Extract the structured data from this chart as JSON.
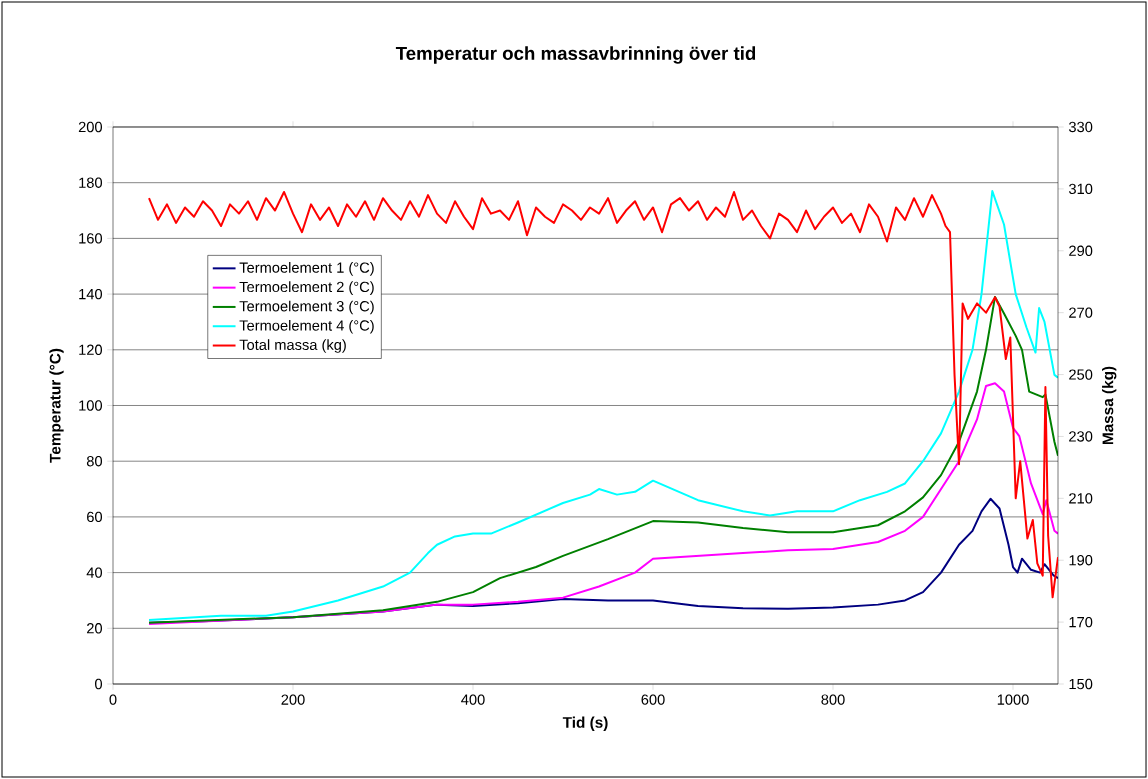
{
  "chart_data": {
    "type": "line",
    "title": "Temperatur och massavbrinning över tid",
    "xlabel": "Tid (s)",
    "ylabel": "Temperatur (°C)",
    "y2label": "Massa (kg)",
    "xlim": [
      0,
      1050
    ],
    "xticks": [
      0,
      200,
      400,
      600,
      800,
      1000
    ],
    "ylim": [
      0,
      200
    ],
    "yticks": [
      0,
      20,
      40,
      60,
      80,
      100,
      120,
      140,
      160,
      180,
      200
    ],
    "y2lim": [
      150,
      330
    ],
    "y2ticks": [
      150,
      170,
      190,
      210,
      230,
      250,
      270,
      290,
      310,
      330
    ],
    "grid": "y",
    "legend": "top left",
    "series": [
      {
        "name": "Termoelement 1 (°C)",
        "color": "#000080",
        "x": [
          40,
          100,
          200,
          300,
          360,
          400,
          450,
          500,
          550,
          600,
          650,
          700,
          750,
          800,
          850,
          880,
          900,
          920,
          940,
          955,
          965,
          975,
          985,
          995,
          1000,
          1005,
          1010,
          1020,
          1030,
          1035,
          1045,
          1050
        ],
        "values": [
          22,
          22.5,
          24,
          26,
          28.5,
          28,
          29,
          30.5,
          30,
          30,
          28,
          27.2,
          27,
          27.5,
          28.5,
          30,
          33,
          40,
          50,
          55,
          62,
          66.5,
          63,
          50,
          42,
          40,
          45,
          41,
          40,
          43,
          39,
          38
        ]
      },
      {
        "name": "Termoelement 2 (°C)",
        "color": "#ff00ff",
        "x": [
          40,
          200,
          300,
          360,
          400,
          450,
          500,
          540,
          580,
          600,
          700,
          750,
          800,
          850,
          880,
          900,
          920,
          940,
          960,
          970,
          980,
          990,
          1000,
          1007,
          1020,
          1033,
          1037,
          1046,
          1050
        ],
        "values": [
          21.5,
          24,
          26,
          28.5,
          28.5,
          29.5,
          31,
          35,
          40,
          45,
          47,
          48,
          48.5,
          51,
          55,
          60,
          70,
          80,
          95,
          107,
          108,
          105,
          92,
          89,
          72,
          61,
          66,
          55,
          54
        ]
      },
      {
        "name": "Termoelement 3 (°C)",
        "color": "#008000",
        "x": [
          40,
          200,
          300,
          360,
          400,
          430,
          470,
          500,
          550,
          600,
          650,
          700,
          750,
          800,
          850,
          880,
          900,
          920,
          940,
          960,
          970,
          980,
          990,
          1003,
          1010,
          1018,
          1033,
          1036,
          1046,
          1050
        ],
        "values": [
          22,
          24,
          26.5,
          29.5,
          33,
          38,
          42,
          46,
          52,
          58.5,
          58,
          56,
          54.5,
          54.5,
          57,
          62,
          67,
          75,
          87,
          105,
          120,
          139,
          133,
          125,
          120,
          105,
          103,
          104,
          87,
          82
        ]
      },
      {
        "name": "Termoelement 4 (°C)",
        "color": "#00ffff",
        "x": [
          40,
          120,
          170,
          200,
          250,
          300,
          330,
          350,
          360,
          380,
          400,
          420,
          450,
          500,
          530,
          540,
          560,
          580,
          600,
          650,
          700,
          730,
          760,
          800,
          830,
          860,
          880,
          900,
          920,
          940,
          955,
          965,
          977,
          990,
          1003,
          1015,
          1025,
          1029,
          1035,
          1046,
          1050
        ],
        "values": [
          23,
          24.5,
          24.5,
          26,
          30,
          35,
          40,
          47,
          50,
          53,
          54,
          54,
          58,
          65,
          68,
          70,
          68,
          69,
          73,
          66,
          62,
          60.5,
          62,
          62,
          66,
          69,
          72,
          80,
          90,
          105,
          120,
          140,
          177,
          165,
          140,
          128,
          119,
          135,
          130,
          111,
          110
        ]
      },
      {
        "name": "Total massa (kg)",
        "color": "#ff0000",
        "axis": "y2",
        "x": [
          40,
          50,
          60,
          70,
          80,
          90,
          100,
          110,
          120,
          130,
          140,
          150,
          160,
          170,
          180,
          190,
          200,
          210,
          220,
          230,
          240,
          250,
          260,
          270,
          280,
          290,
          300,
          310,
          320,
          330,
          340,
          350,
          360,
          370,
          380,
          390,
          400,
          410,
          420,
          430,
          440,
          450,
          460,
          470,
          480,
          490,
          500,
          510,
          520,
          530,
          540,
          550,
          560,
          570,
          580,
          590,
          600,
          610,
          620,
          630,
          640,
          650,
          660,
          670,
          680,
          690,
          700,
          710,
          720,
          730,
          740,
          750,
          760,
          770,
          780,
          790,
          800,
          810,
          820,
          830,
          840,
          850,
          860,
          870,
          880,
          890,
          900,
          910,
          920,
          925,
          930,
          935,
          940,
          944,
          950,
          960,
          970,
          980,
          985,
          992,
          997,
          1003,
          1008,
          1016,
          1022,
          1027,
          1033,
          1036,
          1039,
          1044,
          1050
        ],
        "values": [
          307,
          300,
          305,
          299,
          304,
          301,
          306,
          303,
          298,
          305,
          302,
          306,
          300,
          307,
          303,
          309,
          302,
          296,
          305,
          300,
          304,
          298,
          305,
          301,
          306,
          300,
          307,
          303,
          300,
          306,
          301,
          308,
          302,
          299,
          306,
          301,
          297,
          307,
          302,
          303,
          300,
          306,
          295,
          304,
          301,
          299,
          305,
          303,
          300,
          304,
          302,
          307,
          299,
          303,
          306,
          300,
          304,
          296,
          305,
          307,
          303,
          306,
          300,
          304,
          301,
          309,
          300,
          303,
          298,
          294,
          302,
          300,
          296,
          303,
          297,
          301,
          304,
          299,
          302,
          296,
          305,
          301,
          293,
          304,
          300,
          307,
          301,
          308,
          302,
          298,
          296,
          250,
          221,
          273,
          268,
          273,
          270,
          275,
          272,
          255,
          262,
          210,
          222,
          197,
          203,
          189,
          185,
          246,
          198,
          178,
          191
        ]
      }
    ]
  }
}
